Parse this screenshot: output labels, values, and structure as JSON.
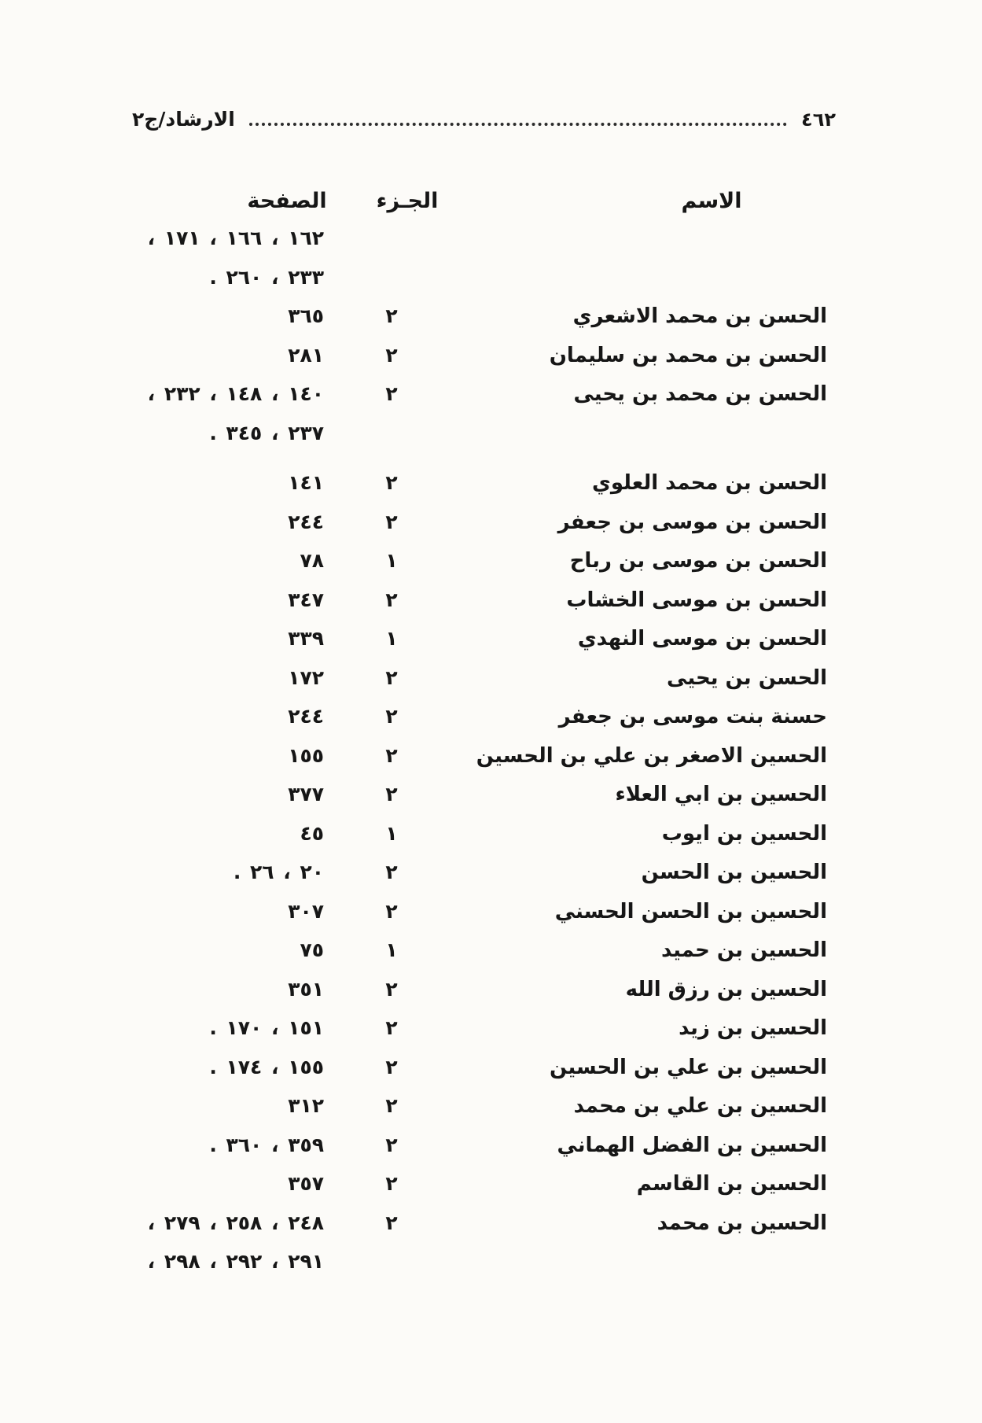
{
  "header": {
    "title": "الارشاد/ج٢",
    "page_number": "٤٦٢"
  },
  "table": {
    "columns": {
      "name": "الاسم",
      "part": "الجـزء",
      "page": "الصفحة"
    },
    "rows": [
      {
        "name": "",
        "part": "",
        "pages": "١٦٢ ، ١٦٦ ، ١٧١ ،"
      },
      {
        "name": "",
        "part": "",
        "pages": "٢٣٣ ، ٢٦٠ ."
      },
      {
        "name": "الحسن بن محمد الاشعري",
        "part": "٢",
        "pages": "٣٦٥"
      },
      {
        "name": "الحسن بن محمد بن سليمان",
        "part": "٢",
        "pages": "٢٨١"
      },
      {
        "name": "الحسن بن محمد بن يحيى",
        "part": "٢",
        "pages": "١٤٠ ، ١٤٨ ، ٢٣٢ ،"
      },
      {
        "name": "",
        "part": "",
        "pages": "٢٣٧ ، ٣٤٥ ."
      },
      {
        "name": "الحسن بن محمد العلوي",
        "part": "٢",
        "pages": "١٤١"
      },
      {
        "name": "الحسن بن موسى بن جعفر",
        "part": "٢",
        "pages": "٢٤٤"
      },
      {
        "name": "الحسن بن موسى بن رباح",
        "part": "١",
        "pages": "٧٨"
      },
      {
        "name": "الحسن بن موسى الخشاب",
        "part": "٢",
        "pages": "٣٤٧"
      },
      {
        "name": "الحسن بن موسى النهدي",
        "part": "١",
        "pages": "٣٣٩"
      },
      {
        "name": "الحسن بن يحيى",
        "part": "٢",
        "pages": "١٧٢"
      },
      {
        "name": "حسنة بنت موسى بن جعفر",
        "part": "٢",
        "pages": "٢٤٤"
      },
      {
        "name": "الحسين الاصغر بن علي بن الحسين",
        "part": "٢",
        "pages": "١٥٥"
      },
      {
        "name": "الحسين بن ابي العلاء",
        "part": "٢",
        "pages": "٣٧٧"
      },
      {
        "name": "الحسين بن ايوب",
        "part": "١",
        "pages": "٤٥"
      },
      {
        "name": "الحسين بن الحسن",
        "part": "٢",
        "pages": "٢٠ ، ٢٦ ."
      },
      {
        "name": "الحسين بن الحسن الحسني",
        "part": "٢",
        "pages": "٣٠٧"
      },
      {
        "name": "الحسين بن حميد",
        "part": "١",
        "pages": "٧٥"
      },
      {
        "name": "الحسين بن رزق الله",
        "part": "٢",
        "pages": "٣٥١"
      },
      {
        "name": "الحسين بن زيد",
        "part": "٢",
        "pages": "١٥١ ، ١٧٠ ."
      },
      {
        "name": "الحسين بن علي بن الحسين",
        "part": "٢",
        "pages": "١٥٥ ، ١٧٤ ."
      },
      {
        "name": "الحسين بن علي بن محمد",
        "part": "٢",
        "pages": "٣١٢"
      },
      {
        "name": "الحسين بن الفضل الهماني",
        "part": "٢",
        "pages": "٣٥٩ ، ٣٦٠ ."
      },
      {
        "name": "الحسين بن القاسم",
        "part": "٢",
        "pages": "٣٥٧"
      },
      {
        "name": "الحسين بن محمد",
        "part": "٢",
        "pages": "٢٤٨ ، ٢٥٨ ، ٢٧٩ ،"
      },
      {
        "name": "",
        "part": "",
        "pages": "٢٩١ ، ٢٩٢ ، ٢٩٨ ،"
      }
    ]
  },
  "colors": {
    "ink": "#161616",
    "paper": "#fcfbf8"
  }
}
